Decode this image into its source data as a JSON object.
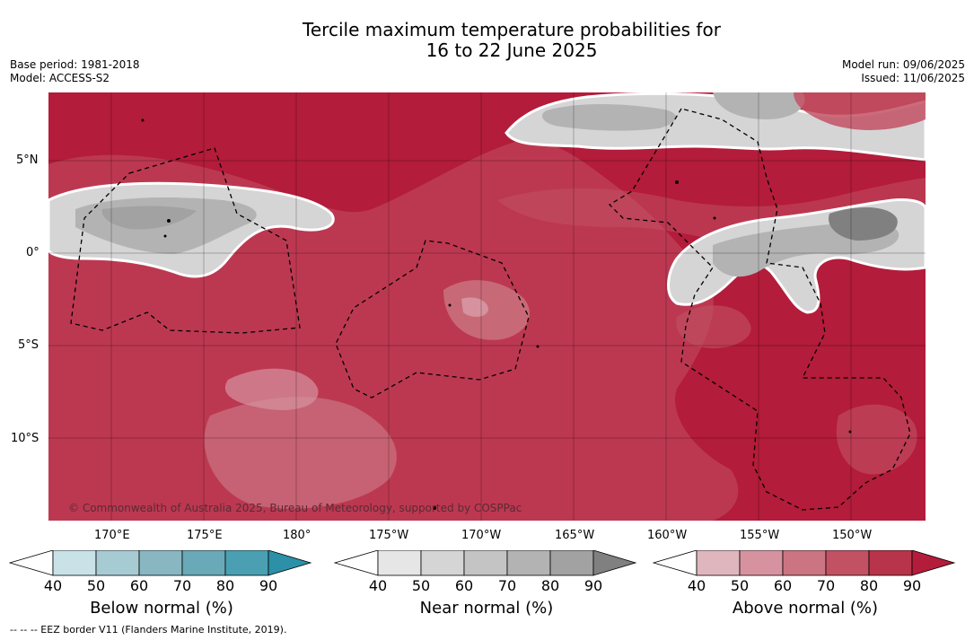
{
  "title": {
    "line1": "Tercile maximum temperature probabilities for",
    "line2": "16 to 22 June 2025"
  },
  "meta": {
    "base_period": "Base period: 1981-2018",
    "model": "Model: ACCESS-S2",
    "model_run": "Model run: 09/06/2025",
    "issued": "Issued: 11/06/2025"
  },
  "map": {
    "background_color": "#b31c3a",
    "lat_labels": [
      "5°N",
      "0°",
      "5°S",
      "10°S"
    ],
    "lon_labels": [
      "170°E",
      "175°E",
      "180°",
      "175°W",
      "170°W",
      "165°W",
      "160°W",
      "155°W",
      "150°W"
    ],
    "copyright": "© Commonwealth of Australia 2025, Bureau of Meteorology, supported by COSPPac",
    "eez_line_color": "#000000"
  },
  "colorbars": [
    {
      "label": "Below normal (%)",
      "ticks": [
        "40",
        "50",
        "60",
        "70",
        "80",
        "90"
      ],
      "colors": [
        "#c9e2e8",
        "#a7cbd2",
        "#88b6c1",
        "#69a9b8",
        "#4aa0b2",
        "#2b90a8"
      ]
    },
    {
      "label": "Near normal (%)",
      "ticks": [
        "40",
        "50",
        "60",
        "70",
        "80",
        "90"
      ],
      "colors": [
        "#e6e6e6",
        "#d5d5d5",
        "#c4c4c4",
        "#b3b3b3",
        "#a2a2a2",
        "#808080"
      ]
    },
    {
      "label": "Above normal (%)",
      "ticks": [
        "40",
        "50",
        "60",
        "70",
        "80",
        "90"
      ],
      "colors": [
        "#e0b6be",
        "#d6939f",
        "#cb7582",
        "#c25164",
        "#b8344b",
        "#b31c3a"
      ]
    }
  ],
  "footnote": "--  --  -- EEZ border V11 (Flanders Marine Institute, 2019)."
}
